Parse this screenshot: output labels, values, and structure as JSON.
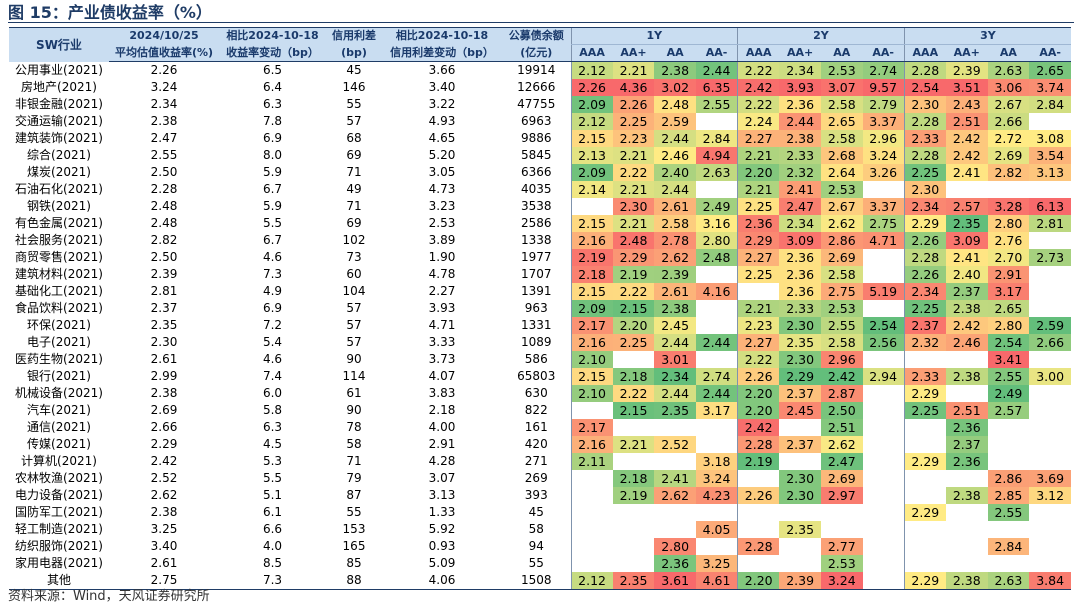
{
  "title": "图 15：产业债收益率（%）",
  "source": "资料来源：Wind，天风证券研究所",
  "headers": {
    "industry": "SW行业",
    "date_top": "2024/10/25",
    "date_bottom": "平均估值收益率(%)",
    "chg_top": "相比2024-10-18",
    "chg_bottom": "收益率变动（bp）",
    "spread_top": "信用利差",
    "spread_bottom": "(bp)",
    "spreadchg_top": "相比2024-10-18",
    "spreadchg_bottom": "信用利差变动（bp）",
    "amount_top": "公募债余额",
    "amount_bottom": "(亿元)",
    "groups": [
      "1Y",
      "2Y",
      "3Y"
    ],
    "ratings": [
      "AAA",
      "AA+",
      "AA",
      "AA-"
    ]
  },
  "rows": [
    {
      "name": "公用事业(2021)",
      "yield": "2.26",
      "chg": "6.5",
      "spread": "45",
      "spread_chg": "3.66",
      "amount": "19914",
      "m": [
        "2.12",
        "2.21",
        "2.38",
        "2.44",
        "2.22",
        "2.34",
        "2.53",
        "2.74",
        "2.28",
        "2.39",
        "2.63",
        "2.65"
      ]
    },
    {
      "name": "房地产(2021)",
      "yield": "3.24",
      "chg": "6.4",
      "spread": "146",
      "spread_chg": "3.40",
      "amount": "12666",
      "m": [
        "2.26",
        "4.36",
        "3.02",
        "6.35",
        "2.42",
        "3.93",
        "3.07",
        "9.57",
        "2.54",
        "3.51",
        "3.06",
        "3.74"
      ]
    },
    {
      "name": "非银金融(2021)",
      "yield": "2.34",
      "chg": "6.3",
      "spread": "55",
      "spread_chg": "3.22",
      "amount": "47755",
      "m": [
        "2.09",
        "2.26",
        "2.48",
        "2.55",
        "2.22",
        "2.36",
        "2.58",
        "2.79",
        "2.30",
        "2.43",
        "2.67",
        "2.84"
      ]
    },
    {
      "name": "交通运输(2021)",
      "yield": "2.38",
      "chg": "7.8",
      "spread": "57",
      "spread_chg": "4.93",
      "amount": "6963",
      "m": [
        "2.12",
        "2.25",
        "2.59",
        "",
        "2.24",
        "2.44",
        "2.65",
        "3.37",
        "2.28",
        "2.51",
        "2.66",
        ""
      ]
    },
    {
      "name": "建筑装饰(2021)",
      "yield": "2.47",
      "chg": "6.9",
      "spread": "68",
      "spread_chg": "4.65",
      "amount": "9886",
      "m": [
        "2.15",
        "2.23",
        "2.44",
        "2.84",
        "2.27",
        "2.38",
        "2.58",
        "2.96",
        "2.33",
        "2.42",
        "2.72",
        "3.08"
      ]
    },
    {
      "name": "综合(2021)",
      "yield": "2.55",
      "chg": "8.0",
      "spread": "69",
      "spread_chg": "5.20",
      "amount": "5845",
      "m": [
        "2.13",
        "2.21",
        "2.46",
        "4.94",
        "2.21",
        "2.33",
        "2.68",
        "3.24",
        "2.28",
        "2.42",
        "2.69",
        "3.54"
      ]
    },
    {
      "name": "煤炭(2021)",
      "yield": "2.50",
      "chg": "5.9",
      "spread": "71",
      "spread_chg": "3.05",
      "amount": "6366",
      "m": [
        "2.09",
        "2.22",
        "2.40",
        "2.63",
        "2.20",
        "2.32",
        "2.64",
        "3.26",
        "2.25",
        "2.41",
        "2.82",
        "3.13"
      ]
    },
    {
      "name": "石油石化(2021)",
      "yield": "2.28",
      "chg": "6.7",
      "spread": "49",
      "spread_chg": "4.73",
      "amount": "4035",
      "m": [
        "2.14",
        "2.21",
        "2.44",
        "",
        "2.21",
        "2.41",
        "2.53",
        "",
        "2.30",
        "",
        "",
        ""
      ]
    },
    {
      "name": "钢铁(2021)",
      "yield": "2.48",
      "chg": "5.9",
      "spread": "71",
      "spread_chg": "3.23",
      "amount": "3538",
      "m": [
        "",
        "2.30",
        "2.61",
        "2.49",
        "2.25",
        "2.47",
        "2.67",
        "3.37",
        "2.34",
        "2.57",
        "3.28",
        "6.13"
      ]
    },
    {
      "name": "有色金属(2021)",
      "yield": "2.48",
      "chg": "5.5",
      "spread": "69",
      "spread_chg": "2.53",
      "amount": "2586",
      "m": [
        "2.15",
        "2.21",
        "2.58",
        "3.16",
        "2.36",
        "2.34",
        "2.62",
        "2.75",
        "2.29",
        "2.35",
        "2.80",
        "2.81"
      ]
    },
    {
      "name": "社会服务(2021)",
      "yield": "2.82",
      "chg": "6.7",
      "spread": "102",
      "spread_chg": "3.89",
      "amount": "1338",
      "m": [
        "2.16",
        "2.48",
        "2.78",
        "2.80",
        "2.29",
        "3.09",
        "2.86",
        "4.71",
        "2.26",
        "3.09",
        "2.76",
        ""
      ]
    },
    {
      "name": "商贸零售(2021)",
      "yield": "2.50",
      "chg": "4.6",
      "spread": "73",
      "spread_chg": "1.90",
      "amount": "1977",
      "m": [
        "2.19",
        "2.29",
        "2.62",
        "2.48",
        "2.27",
        "2.36",
        "2.69",
        "",
        "2.28",
        "2.41",
        "2.70",
        "2.73"
      ]
    },
    {
      "name": "建筑材料(2021)",
      "yield": "2.39",
      "chg": "7.3",
      "spread": "60",
      "spread_chg": "4.78",
      "amount": "1707",
      "m": [
        "2.18",
        "2.19",
        "2.39",
        "",
        "2.25",
        "2.36",
        "2.58",
        "",
        "2.26",
        "2.40",
        "2.91",
        ""
      ]
    },
    {
      "name": "基础化工(2021)",
      "yield": "2.81",
      "chg": "4.9",
      "spread": "104",
      "spread_chg": "2.27",
      "amount": "1391",
      "m": [
        "2.15",
        "2.22",
        "2.61",
        "4.16",
        "",
        "2.36",
        "2.75",
        "5.19",
        "2.34",
        "2.37",
        "3.17",
        ""
      ]
    },
    {
      "name": "食品饮料(2021)",
      "yield": "2.37",
      "chg": "6.9",
      "spread": "57",
      "spread_chg": "3.93",
      "amount": "963",
      "m": [
        "2.09",
        "2.15",
        "2.38",
        "",
        "2.21",
        "2.33",
        "2.53",
        "",
        "2.25",
        "2.38",
        "2.65",
        ""
      ]
    },
    {
      "name": "环保(2021)",
      "yield": "2.35",
      "chg": "7.2",
      "spread": "57",
      "spread_chg": "4.71",
      "amount": "1331",
      "m": [
        "2.17",
        "2.20",
        "2.45",
        "",
        "2.23",
        "2.30",
        "2.55",
        "2.54",
        "2.37",
        "2.42",
        "2.80",
        "2.59"
      ]
    },
    {
      "name": "电子(2021)",
      "yield": "2.30",
      "chg": "5.4",
      "spread": "57",
      "spread_chg": "3.33",
      "amount": "1089",
      "m": [
        "2.16",
        "2.25",
        "2.44",
        "2.44",
        "2.27",
        "2.35",
        "2.58",
        "2.56",
        "2.32",
        "2.46",
        "2.54",
        "2.66"
      ]
    },
    {
      "name": "医药生物(2021)",
      "yield": "2.61",
      "chg": "4.6",
      "spread": "90",
      "spread_chg": "3.73",
      "amount": "586",
      "m": [
        "2.10",
        "",
        "3.01",
        "",
        "2.22",
        "2.30",
        "2.96",
        "",
        "",
        "",
        "3.41",
        ""
      ]
    },
    {
      "name": "银行(2021)",
      "yield": "2.99",
      "chg": "7.4",
      "spread": "114",
      "spread_chg": "4.07",
      "amount": "65803",
      "m": [
        "2.15",
        "2.18",
        "2.34",
        "2.74",
        "2.26",
        "2.29",
        "2.42",
        "2.94",
        "2.33",
        "2.38",
        "2.55",
        "3.00"
      ]
    },
    {
      "name": "机械设备(2021)",
      "yield": "2.38",
      "chg": "6.0",
      "spread": "61",
      "spread_chg": "3.83",
      "amount": "630",
      "m": [
        "2.10",
        "2.22",
        "2.44",
        "2.44",
        "2.20",
        "2.37",
        "2.87",
        "",
        "2.29",
        "",
        "2.49",
        ""
      ]
    },
    {
      "name": "汽车(2021)",
      "yield": "2.69",
      "chg": "5.8",
      "spread": "90",
      "spread_chg": "2.18",
      "amount": "822",
      "m": [
        "",
        "2.15",
        "2.35",
        "3.17",
        "2.20",
        "2.45",
        "2.50",
        "",
        "2.25",
        "2.51",
        "2.57",
        ""
      ]
    },
    {
      "name": "通信(2021)",
      "yield": "2.66",
      "chg": "6.3",
      "spread": "78",
      "spread_chg": "4.00",
      "amount": "161",
      "m": [
        "2.17",
        "",
        "",
        "",
        "2.42",
        "",
        "2.51",
        "",
        "",
        "2.36",
        "",
        ""
      ]
    },
    {
      "name": "传媒(2021)",
      "yield": "2.29",
      "chg": "4.5",
      "spread": "58",
      "spread_chg": "2.91",
      "amount": "420",
      "m": [
        "2.16",
        "2.21",
        "2.52",
        "",
        "2.28",
        "2.37",
        "2.62",
        "",
        "",
        "2.37",
        "",
        ""
      ]
    },
    {
      "name": "计算机(2021)",
      "yield": "2.42",
      "chg": "5.3",
      "spread": "71",
      "spread_chg": "4.28",
      "amount": "271",
      "m": [
        "2.11",
        "",
        "",
        "3.18",
        "2.19",
        "",
        "2.47",
        "",
        "2.29",
        "2.36",
        "",
        ""
      ]
    },
    {
      "name": "农林牧渔(2021)",
      "yield": "2.52",
      "chg": "5.5",
      "spread": "79",
      "spread_chg": "3.07",
      "amount": "269",
      "m": [
        "",
        "2.18",
        "2.41",
        "3.24",
        "",
        "2.30",
        "2.69",
        "",
        "",
        "",
        "2.86",
        "3.69"
      ]
    },
    {
      "name": "电力设备(2021)",
      "yield": "2.62",
      "chg": "5.1",
      "spread": "87",
      "spread_chg": "3.13",
      "amount": "393",
      "m": [
        "",
        "2.19",
        "2.62",
        "4.23",
        "2.26",
        "2.30",
        "2.97",
        "",
        "",
        "2.38",
        "2.85",
        "3.12"
      ]
    },
    {
      "name": "国防军工(2021)",
      "yield": "2.38",
      "chg": "6.1",
      "spread": "55",
      "spread_chg": "1.33",
      "amount": "45",
      "m": [
        "",
        "",
        "",
        "",
        "",
        "",
        "",
        "",
        "2.29",
        "",
        "2.55",
        ""
      ]
    },
    {
      "name": "轻工制造(2021)",
      "yield": "3.25",
      "chg": "6.6",
      "spread": "153",
      "spread_chg": "5.92",
      "amount": "58",
      "m": [
        "",
        "",
        "",
        "4.05",
        "",
        "2.35",
        "",
        "",
        "",
        "",
        "",
        ""
      ]
    },
    {
      "name": "纺织服饰(2021)",
      "yield": "3.40",
      "chg": "4.0",
      "spread": "165",
      "spread_chg": "0.93",
      "amount": "94",
      "m": [
        "",
        "",
        "2.80",
        "",
        "2.28",
        "",
        "2.77",
        "",
        "",
        "",
        "2.84",
        ""
      ]
    },
    {
      "name": "家用电器(2021)",
      "yield": "2.61",
      "chg": "8.5",
      "spread": "85",
      "spread_chg": "5.09",
      "amount": "55",
      "m": [
        "",
        "",
        "2.36",
        "3.25",
        "",
        "",
        "2.53",
        "",
        "",
        "",
        "",
        ""
      ]
    },
    {
      "name": "其他",
      "yield": "2.75",
      "chg": "7.3",
      "spread": "88",
      "spread_chg": "4.06",
      "amount": "1508",
      "m": [
        "2.12",
        "2.35",
        "3.61",
        "4.61",
        "2.20",
        "2.39",
        "3.24",
        "",
        "2.29",
        "2.38",
        "2.63",
        "3.84"
      ]
    }
  ]
}
